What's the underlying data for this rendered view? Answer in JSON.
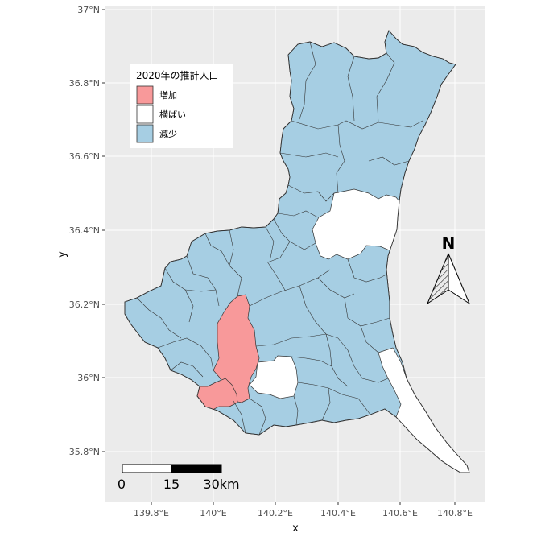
{
  "axes": {
    "x_title": "x",
    "y_title": "y",
    "x_ticks": [
      "139.8°E",
      "140°E",
      "140.2°E",
      "140.4°E",
      "140.6°E",
      "140.8°E"
    ],
    "y_ticks": [
      "37°N",
      "36.8°N",
      "36.6°N",
      "36.4°N",
      "36.2°N",
      "36°N",
      "35.8°N"
    ]
  },
  "legend": {
    "title": "2020年の推計人口",
    "items": [
      {
        "label": "増加",
        "color": "#F8999A"
      },
      {
        "label": "横ばい",
        "color": "#FFFFFF"
      },
      {
        "label": "減少",
        "color": "#A6CEE3"
      }
    ]
  },
  "scale_bar": {
    "labels": [
      "0",
      "15",
      "30km"
    ]
  },
  "north_arrow": {
    "label": "N"
  },
  "colors": {
    "panel_background": "#EBEBEB",
    "grid": "#FFFFFF",
    "increase": "#F8999A",
    "flat": "#FFFFFF",
    "decrease": "#A6CEE3",
    "border": "#333333"
  }
}
